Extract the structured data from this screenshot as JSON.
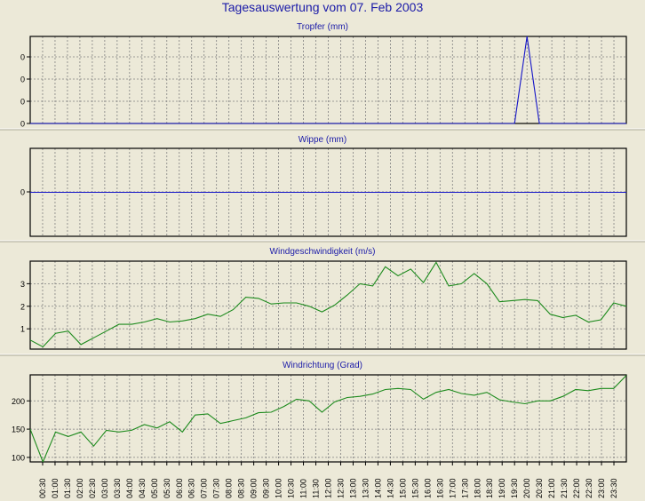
{
  "page_title": "Tagesauswertung vom 07. Feb 2003",
  "colors": {
    "title": "#1a1aa8",
    "background": "#ece9d8",
    "grid": "#808080",
    "series_blue": "#1515c8",
    "series_green": "#1c8a1c"
  },
  "x_ticks": [
    "00:30",
    "01:00",
    "01:30",
    "02:00",
    "02:30",
    "03:00",
    "03:30",
    "04:00",
    "04:30",
    "05:00",
    "05:30",
    "06:00",
    "06:30",
    "07:00",
    "07:30",
    "08:00",
    "08:30",
    "09:00",
    "09:30",
    "10:00",
    "10:30",
    "11:00",
    "11:30",
    "12:00",
    "12:30",
    "13:00",
    "13:30",
    "14:00",
    "14:30",
    "15:00",
    "15:30",
    "16:00",
    "16:30",
    "17:00",
    "17:30",
    "18:00",
    "18:30",
    "19:00",
    "19:30",
    "20:00",
    "20:30",
    "21:00",
    "21:30",
    "22:00",
    "22:30",
    "23:00",
    "23:30"
  ],
  "chart_data": [
    {
      "type": "line",
      "title": "Tropfer (mm)",
      "ytick_labels": [
        "0",
        "0",
        "0",
        "0"
      ],
      "ylim": [
        0,
        1
      ],
      "grid": true,
      "series": [
        {
          "color": "#1515c8",
          "values": [
            0,
            0,
            0,
            0,
            0,
            0,
            0,
            0,
            0,
            0,
            0,
            0,
            0,
            0,
            0,
            0,
            0,
            0,
            0,
            0,
            0,
            0,
            0,
            0,
            0,
            0,
            0,
            0,
            0,
            0,
            0,
            0,
            0,
            0,
            0,
            0,
            0,
            0,
            0,
            0,
            1,
            0,
            0,
            0,
            0,
            0,
            0,
            0,
            0
          ]
        }
      ]
    },
    {
      "type": "line",
      "title": "Wippe (mm)",
      "ytick_labels": [
        "0"
      ],
      "ylim": [
        -1,
        1
      ],
      "grid": true,
      "series": [
        {
          "color": "#1515c8",
          "values": [
            0,
            0,
            0,
            0,
            0,
            0,
            0,
            0,
            0,
            0,
            0,
            0,
            0,
            0,
            0,
            0,
            0,
            0,
            0,
            0,
            0,
            0,
            0,
            0,
            0,
            0,
            0,
            0,
            0,
            0,
            0,
            0,
            0,
            0,
            0,
            0,
            0,
            0,
            0,
            0,
            0,
            0,
            0,
            0,
            0,
            0,
            0,
            0,
            0
          ]
        }
      ]
    },
    {
      "type": "line",
      "title": "Windgeschwindigkeit (m/s)",
      "ytick_labels": [
        "1",
        "2",
        "3"
      ],
      "yticks": [
        1,
        2,
        3
      ],
      "ylim": [
        0.1,
        4.0
      ],
      "grid": true,
      "series": [
        {
          "color": "#1c8a1c",
          "values": [
            0.5,
            0.2,
            0.8,
            0.9,
            0.3,
            0.6,
            0.9,
            1.2,
            1.2,
            1.3,
            1.45,
            1.3,
            1.35,
            1.45,
            1.65,
            1.55,
            1.85,
            2.4,
            2.35,
            2.1,
            2.15,
            2.15,
            2.0,
            1.75,
            2.05,
            2.5,
            3.0,
            2.9,
            3.75,
            3.35,
            3.65,
            3.05,
            3.95,
            2.9,
            3.0,
            3.45,
            3.0,
            2.2,
            2.25,
            2.3,
            2.25,
            1.65,
            1.5,
            1.6,
            1.3,
            1.4,
            2.15,
            2.0
          ]
        }
      ]
    },
    {
      "type": "line",
      "title": "Windrichtung (Grad)",
      "ytick_labels": [
        "100",
        "150",
        "200"
      ],
      "yticks": [
        100,
        150,
        200
      ],
      "ylim": [
        92,
        246
      ],
      "grid": true,
      "series": [
        {
          "color": "#1c8a1c",
          "values": [
            150,
            92,
            145,
            137,
            145,
            120,
            148,
            145,
            148,
            158,
            152,
            163,
            145,
            175,
            177,
            160,
            165,
            170,
            179,
            180,
            190,
            203,
            200,
            180,
            198,
            206,
            208,
            212,
            220,
            222,
            220,
            203,
            215,
            220,
            213,
            210,
            215,
            202,
            198,
            195,
            200,
            200,
            208,
            220,
            218,
            222,
            222,
            245
          ]
        }
      ]
    }
  ]
}
